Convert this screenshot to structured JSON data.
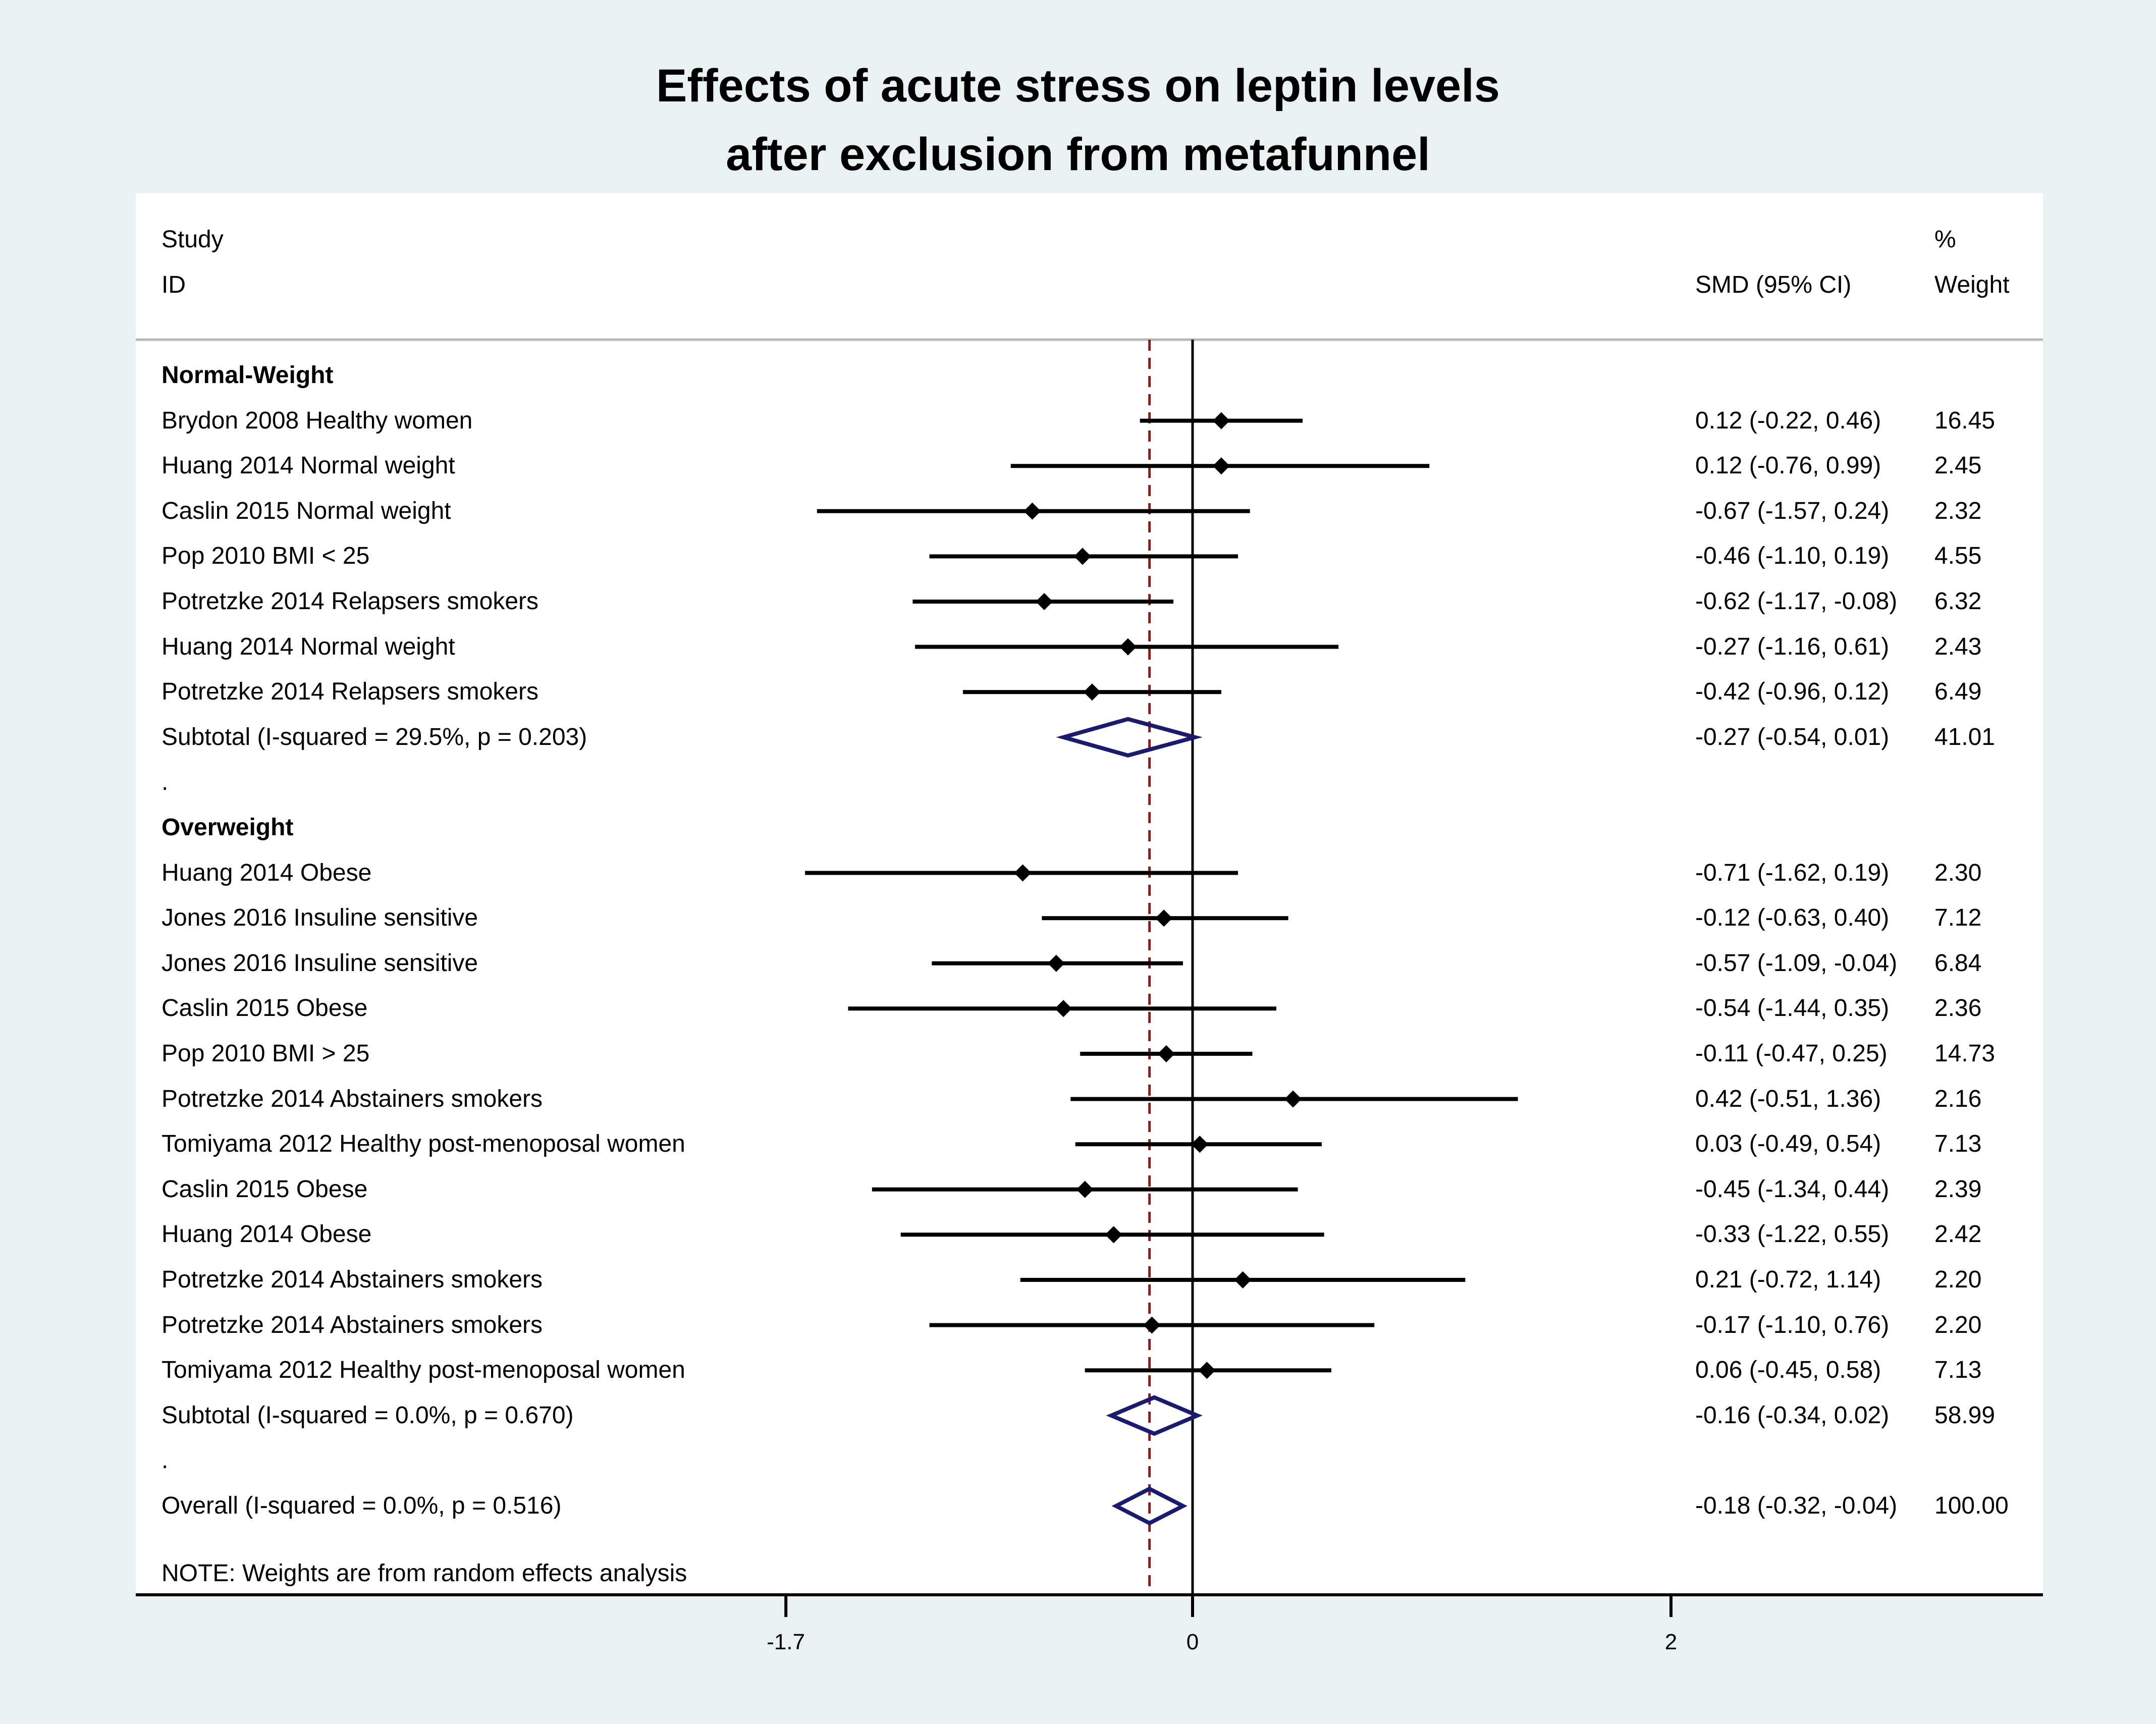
{
  "title": {
    "line1": "Effects of acute stress on leptin levels",
    "line2": "after exclusion from metafunnel"
  },
  "header": {
    "study_label": "Study",
    "id_label": "ID",
    "effect_label": "SMD (95% CI)",
    "pct_label": "%",
    "weight_label": "Weight"
  },
  "note": "NOTE: Weights are from random effects analysis",
  "colors": {
    "background": "#e9f1f2",
    "panel": "#ffffff",
    "marker": "#000000",
    "diamond": "#1a1a6e",
    "reference_line": "#8b1a1a"
  },
  "chart_data": {
    "type": "forest",
    "xlabel": "",
    "x_ticks": [
      -1.7,
      0,
      2
    ],
    "x_tick_labels": [
      "-1.7",
      "0",
      "2"
    ],
    "null_line": 0,
    "overall_line": -0.18,
    "rows": [
      {
        "kind": "group",
        "label": "Normal-Weight"
      },
      {
        "kind": "study",
        "label": "Brydon 2008 Healthy women",
        "est": 0.12,
        "lo": -0.22,
        "hi": 0.46,
        "ci_text": "0.12 (-0.22, 0.46)",
        "weight": "16.45"
      },
      {
        "kind": "study",
        "label": "Huang 2014 Normal weight",
        "est": 0.12,
        "lo": -0.76,
        "hi": 0.99,
        "ci_text": "0.12 (-0.76, 0.99)",
        "weight": "2.45"
      },
      {
        "kind": "study",
        "label": "Caslin 2015 Normal weight",
        "est": -0.67,
        "lo": -1.57,
        "hi": 0.24,
        "ci_text": "-0.67 (-1.57, 0.24)",
        "weight": "2.32"
      },
      {
        "kind": "study",
        "label": "Pop 2010 BMI < 25",
        "est": -0.46,
        "lo": -1.1,
        "hi": 0.19,
        "ci_text": "-0.46 (-1.10, 0.19)",
        "weight": "4.55"
      },
      {
        "kind": "study",
        "label": "Potretzke 2014 Relapsers smokers",
        "est": -0.62,
        "lo": -1.17,
        "hi": -0.08,
        "ci_text": "-0.62 (-1.17, -0.08)",
        "weight": "6.32"
      },
      {
        "kind": "study",
        "label": "Huang 2014 Normal weight",
        "est": -0.27,
        "lo": -1.16,
        "hi": 0.61,
        "ci_text": "-0.27 (-1.16, 0.61)",
        "weight": "2.43"
      },
      {
        "kind": "study",
        "label": "Potretzke 2014 Relapsers smokers",
        "est": -0.42,
        "lo": -0.96,
        "hi": 0.12,
        "ci_text": "-0.42 (-0.96, 0.12)",
        "weight": "6.49"
      },
      {
        "kind": "subtotal",
        "label": "Subtotal  (I-squared = 29.5%, p = 0.203)",
        "est": -0.27,
        "lo": -0.54,
        "hi": 0.01,
        "ci_text": "-0.27 (-0.54, 0.01)",
        "weight": "41.01"
      },
      {
        "kind": "spacer",
        "label": "."
      },
      {
        "kind": "group",
        "label": "Overweight"
      },
      {
        "kind": "study",
        "label": "Huang 2014 Obese",
        "est": -0.71,
        "lo": -1.62,
        "hi": 0.19,
        "ci_text": "-0.71 (-1.62, 0.19)",
        "weight": "2.30"
      },
      {
        "kind": "study",
        "label": "Jones 2016 Insuline sensitive",
        "est": -0.12,
        "lo": -0.63,
        "hi": 0.4,
        "ci_text": "-0.12 (-0.63, 0.40)",
        "weight": "7.12"
      },
      {
        "kind": "study",
        "label": "Jones 2016 Insuline sensitive",
        "est": -0.57,
        "lo": -1.09,
        "hi": -0.04,
        "ci_text": "-0.57 (-1.09, -0.04)",
        "weight": "6.84"
      },
      {
        "kind": "study",
        "label": "Caslin 2015 Obese",
        "est": -0.54,
        "lo": -1.44,
        "hi": 0.35,
        "ci_text": "-0.54 (-1.44, 0.35)",
        "weight": "2.36"
      },
      {
        "kind": "study",
        "label": "Pop 2010 BMI > 25",
        "est": -0.11,
        "lo": -0.47,
        "hi": 0.25,
        "ci_text": "-0.11 (-0.47, 0.25)",
        "weight": "14.73"
      },
      {
        "kind": "study",
        "label": "Potretzke 2014 Abstainers smokers",
        "est": 0.42,
        "lo": -0.51,
        "hi": 1.36,
        "ci_text": "0.42 (-0.51, 1.36)",
        "weight": "2.16"
      },
      {
        "kind": "study",
        "label": "Tomiyama 2012 Healthy post-menoposal women",
        "est": 0.03,
        "lo": -0.49,
        "hi": 0.54,
        "ci_text": "0.03 (-0.49, 0.54)",
        "weight": "7.13"
      },
      {
        "kind": "study",
        "label": "Caslin 2015 Obese",
        "est": -0.45,
        "lo": -1.34,
        "hi": 0.44,
        "ci_text": "-0.45 (-1.34, 0.44)",
        "weight": "2.39"
      },
      {
        "kind": "study",
        "label": "Huang 2014 Obese",
        "est": -0.33,
        "lo": -1.22,
        "hi": 0.55,
        "ci_text": "-0.33 (-1.22, 0.55)",
        "weight": "2.42"
      },
      {
        "kind": "study",
        "label": "Potretzke 2014 Abstainers smokers",
        "est": 0.21,
        "lo": -0.72,
        "hi": 1.14,
        "ci_text": "0.21 (-0.72, 1.14)",
        "weight": "2.20"
      },
      {
        "kind": "study",
        "label": "Potretzke 2014 Abstainers smokers",
        "est": -0.17,
        "lo": -1.1,
        "hi": 0.76,
        "ci_text": "-0.17 (-1.10, 0.76)",
        "weight": "2.20"
      },
      {
        "kind": "study",
        "label": "Tomiyama 2012 Healthy post-menoposal women",
        "est": 0.06,
        "lo": -0.45,
        "hi": 0.58,
        "ci_text": "0.06 (-0.45, 0.58)",
        "weight": "7.13"
      },
      {
        "kind": "subtotal",
        "label": "Subtotal  (I-squared = 0.0%, p = 0.670)",
        "est": -0.16,
        "lo": -0.34,
        "hi": 0.02,
        "ci_text": "-0.16 (-0.34, 0.02)",
        "weight": "58.99"
      },
      {
        "kind": "spacer",
        "label": "."
      },
      {
        "kind": "overall",
        "label": "Overall  (I-squared = 0.0%, p = 0.516)",
        "est": -0.18,
        "lo": -0.32,
        "hi": -0.04,
        "ci_text": "-0.18 (-0.32, -0.04)",
        "weight": "100.00"
      }
    ]
  }
}
